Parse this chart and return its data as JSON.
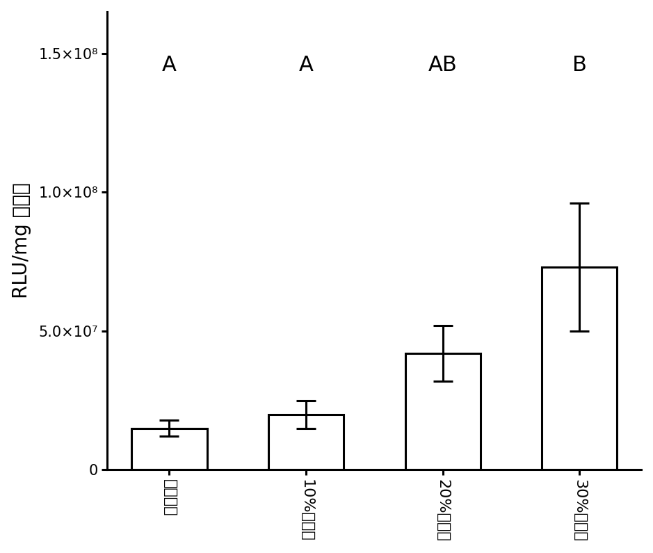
{
  "categories": [
    "无胆固醇",
    "10%胆固醇",
    "20%胆固醇",
    "30%胆固醇"
  ],
  "values": [
    15000000.0,
    20000000.0,
    42000000.0,
    73000000.0
  ],
  "errors": [
    3000000.0,
    5000000.0,
    10000000.0,
    23000000.0
  ],
  "significance": [
    "A",
    "A",
    "AB",
    "B"
  ],
  "ylabel": "RLU/mg 蛋白质",
  "ylim": [
    0,
    165000000.0
  ],
  "yticks": [
    0,
    50000000.0,
    100000000.0,
    150000000.0
  ],
  "ytick_labels": [
    "0",
    "5.0×10⁷",
    "1.0×10⁸",
    "1.5×10⁸"
  ],
  "bar_color": "#ffffff",
  "bar_edgecolor": "#000000",
  "bar_width": 0.55,
  "background_color": "#ffffff",
  "sig_fontsize": 22,
  "ylabel_fontsize": 20,
  "ytick_fontsize": 15,
  "xtick_fontsize": 16,
  "linewidth": 2.2
}
